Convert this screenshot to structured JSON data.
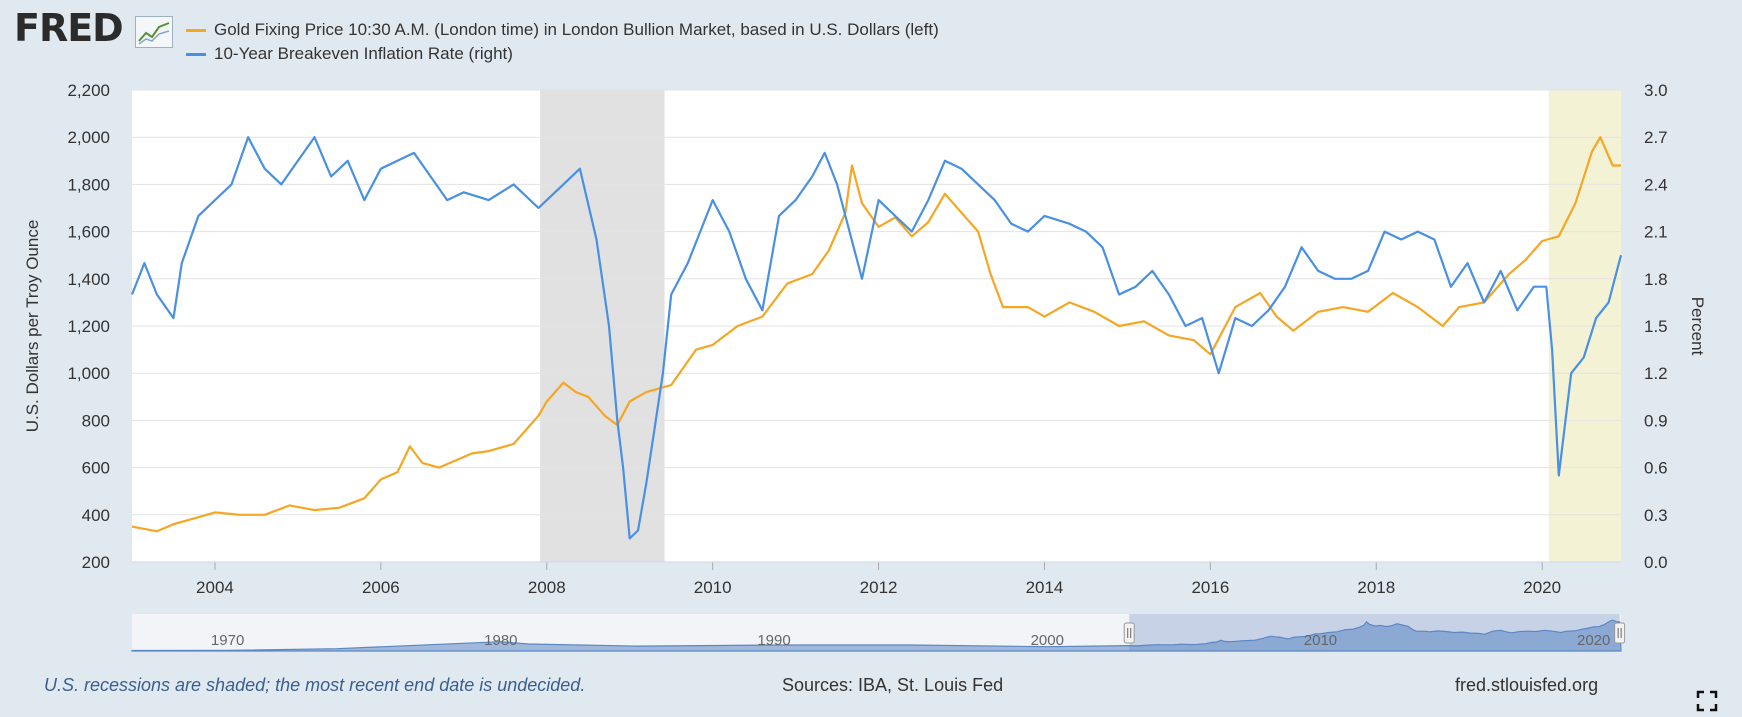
{
  "header": {
    "logo_text": "FRED",
    "logo_graph_icon": "line-chart-icon"
  },
  "legend": [
    {
      "label": "Gold Fixing Price 10:30 A.M. (London time) in London Bullion Market, based in U.S. Dollars (left)",
      "color": "#f5a623"
    },
    {
      "label": "10-Year Breakeven Inflation Rate (right)",
      "color": "#4a90e2"
    }
  ],
  "footer": {
    "note": "U.S. recessions are shaded; the most recent end date is undecided.",
    "sources": "Sources: IBA, St. Louis Fed",
    "url": "fred.stlouisfed.org"
  },
  "colors": {
    "gold": "#f5a623",
    "breakeven": "#4a90e2",
    "recession": "#e1e1e1",
    "recession_current": "#f3f2d5",
    "navigator": "#5b87c4"
  },
  "chart_data": {
    "type": "line",
    "xlim": [
      2003.0,
      2020.95
    ],
    "x_ticks": [
      "2004",
      "2006",
      "2008",
      "2010",
      "2012",
      "2014",
      "2016",
      "2018",
      "2020"
    ],
    "x_tick_values": [
      2004,
      2006,
      2008,
      2010,
      2012,
      2014,
      2016,
      2018,
      2020
    ],
    "left_axis": {
      "label": "U.S. Dollars per Troy Ounce",
      "ylim": [
        200,
        2200
      ],
      "ticks": [
        "200",
        "400",
        "600",
        "800",
        "1,000",
        "1,200",
        "1,400",
        "1,600",
        "1,800",
        "2,000",
        "2,200"
      ],
      "tick_values": [
        200,
        400,
        600,
        800,
        1000,
        1200,
        1400,
        1600,
        1800,
        2000,
        2200
      ]
    },
    "right_axis": {
      "label": "Percent",
      "ylim": [
        0.0,
        3.0
      ],
      "ticks": [
        "0.0",
        "0.3",
        "0.6",
        "0.9",
        "1.2",
        "1.5",
        "1.8",
        "2.1",
        "2.4",
        "2.7",
        "3.0"
      ],
      "tick_values": [
        0.0,
        0.3,
        0.6,
        0.9,
        1.2,
        1.5,
        1.8,
        2.1,
        2.4,
        2.7,
        3.0
      ]
    },
    "recessions": [
      [
        2007.92,
        2009.42
      ],
      [
        2020.08,
        2020.95
      ]
    ],
    "grid": true,
    "series": [
      {
        "name": "Gold Fixing Price 10:30 A.M. (London time) in London Bullion Market, based in U.S. Dollars (left)",
        "axis": "left",
        "x": [
          2003.0,
          2003.3,
          2003.5,
          2003.8,
          2004.0,
          2004.3,
          2004.6,
          2004.9,
          2005.2,
          2005.5,
          2005.8,
          2006.0,
          2006.2,
          2006.35,
          2006.5,
          2006.7,
          2006.9,
          2007.1,
          2007.3,
          2007.6,
          2007.9,
          2008.0,
          2008.2,
          2008.35,
          2008.5,
          2008.7,
          2008.85,
          2009.0,
          2009.2,
          2009.5,
          2009.8,
          2010.0,
          2010.3,
          2010.6,
          2010.9,
          2011.2,
          2011.4,
          2011.6,
          2011.68,
          2011.8,
          2012.0,
          2012.2,
          2012.4,
          2012.6,
          2012.8,
          2013.0,
          2013.2,
          2013.35,
          2013.5,
          2013.8,
          2014.0,
          2014.3,
          2014.6,
          2014.9,
          2015.2,
          2015.5,
          2015.8,
          2016.0,
          2016.3,
          2016.6,
          2016.8,
          2017.0,
          2017.3,
          2017.6,
          2017.9,
          2018.2,
          2018.5,
          2018.8,
          2019.0,
          2019.3,
          2019.6,
          2019.8,
          2020.0,
          2020.2,
          2020.4,
          2020.6,
          2020.7,
          2020.85,
          2020.95
        ],
        "values": [
          350,
          330,
          360,
          390,
          410,
          400,
          400,
          440,
          420,
          430,
          470,
          550,
          580,
          690,
          620,
          600,
          630,
          660,
          670,
          700,
          820,
          880,
          960,
          920,
          900,
          820,
          780,
          880,
          920,
          950,
          1100,
          1120,
          1200,
          1240,
          1380,
          1420,
          1520,
          1680,
          1880,
          1720,
          1620,
          1660,
          1580,
          1640,
          1760,
          1680,
          1600,
          1420,
          1280,
          1280,
          1240,
          1300,
          1260,
          1200,
          1220,
          1160,
          1140,
          1080,
          1280,
          1340,
          1240,
          1180,
          1260,
          1280,
          1260,
          1340,
          1280,
          1200,
          1280,
          1300,
          1420,
          1480,
          1560,
          1580,
          1720,
          1940,
          2000,
          1880,
          1880
        ]
      },
      {
        "name": "10-Year Breakeven Inflation Rate (right)",
        "axis": "right",
        "x": [
          2003.0,
          2003.15,
          2003.3,
          2003.5,
          2003.6,
          2003.8,
          2004.0,
          2004.2,
          2004.4,
          2004.6,
          2004.8,
          2005.0,
          2005.2,
          2005.4,
          2005.6,
          2005.8,
          2006.0,
          2006.2,
          2006.4,
          2006.6,
          2006.8,
          2007.0,
          2007.3,
          2007.6,
          2007.9,
          2008.0,
          2008.2,
          2008.4,
          2008.6,
          2008.75,
          2008.85,
          2008.92,
          2009.0,
          2009.1,
          2009.2,
          2009.4,
          2009.5,
          2009.7,
          2010.0,
          2010.2,
          2010.4,
          2010.6,
          2010.8,
          2011.0,
          2011.2,
          2011.35,
          2011.5,
          2011.7,
          2011.8,
          2012.0,
          2012.2,
          2012.4,
          2012.6,
          2012.8,
          2013.0,
          2013.2,
          2013.4,
          2013.6,
          2013.8,
          2014.0,
          2014.3,
          2014.5,
          2014.7,
          2014.9,
          2015.1,
          2015.3,
          2015.5,
          2015.7,
          2015.9,
          2016.1,
          2016.3,
          2016.5,
          2016.7,
          2016.9,
          2017.1,
          2017.3,
          2017.5,
          2017.7,
          2017.9,
          2018.1,
          2018.3,
          2018.5,
          2018.7,
          2018.9,
          2019.1,
          2019.3,
          2019.5,
          2019.7,
          2019.9,
          2020.05,
          2020.12,
          2020.2,
          2020.35,
          2020.5,
          2020.65,
          2020.8,
          2020.95
        ],
        "values": [
          1.7,
          1.9,
          1.7,
          1.55,
          1.9,
          2.2,
          2.3,
          2.4,
          2.7,
          2.5,
          2.4,
          2.55,
          2.7,
          2.45,
          2.55,
          2.3,
          2.5,
          2.55,
          2.6,
          2.45,
          2.3,
          2.35,
          2.3,
          2.4,
          2.25,
          2.3,
          2.4,
          2.5,
          2.05,
          1.5,
          0.9,
          0.6,
          0.15,
          0.2,
          0.5,
          1.2,
          1.7,
          1.9,
          2.3,
          2.1,
          1.8,
          1.6,
          2.2,
          2.3,
          2.45,
          2.6,
          2.4,
          2.0,
          1.8,
          2.3,
          2.2,
          2.1,
          2.3,
          2.55,
          2.5,
          2.4,
          2.3,
          2.15,
          2.1,
          2.2,
          2.15,
          2.1,
          2.0,
          1.7,
          1.75,
          1.85,
          1.7,
          1.5,
          1.55,
          1.2,
          1.55,
          1.5,
          1.6,
          1.75,
          2.0,
          1.85,
          1.8,
          1.8,
          1.85,
          2.1,
          2.05,
          2.1,
          2.05,
          1.75,
          1.9,
          1.65,
          1.85,
          1.6,
          1.75,
          1.75,
          1.35,
          0.55,
          1.2,
          1.3,
          1.55,
          1.65,
          1.95
        ]
      }
    ],
    "navigator": {
      "tick_labels": [
        "1970",
        "1980",
        "1990",
        "2000",
        "2010",
        "2020"
      ],
      "tick_values": [
        1970,
        1980,
        1990,
        2000,
        2010,
        2020
      ],
      "range": [
        1966.5,
        2021.0
      ],
      "selected": [
        2003.0,
        2020.95
      ]
    }
  }
}
